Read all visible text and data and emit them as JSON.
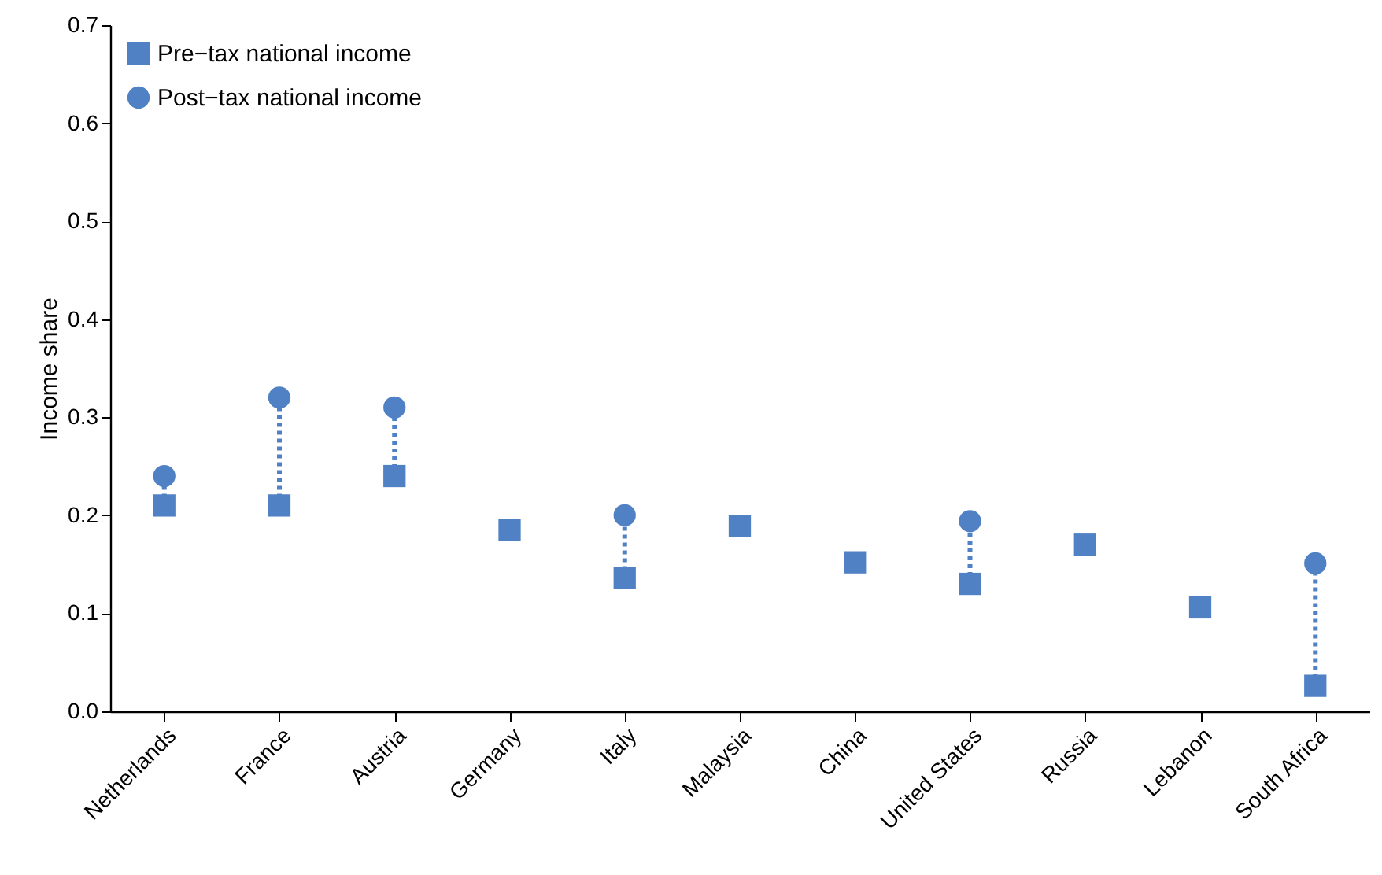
{
  "chart_data": {
    "type": "scatter",
    "ylabel": "Income share",
    "categories": [
      "Netherlands",
      "France",
      "Austria",
      "Germany",
      "Italy",
      "Malaysia",
      "China",
      "United States",
      "Russia",
      "Lebanon",
      "South Africa"
    ],
    "series": [
      {
        "name": "Pre−tax national income",
        "color": "#4f81c4",
        "marker": "square",
        "values": [
          0.21,
          0.21,
          0.24,
          0.185,
          0.136,
          0.189,
          0.152,
          0.13,
          0.17,
          0.106,
          0.026
        ]
      },
      {
        "name": "Post−tax national income",
        "color": "#4f81c4",
        "marker": "circle",
        "values": [
          0.24,
          0.32,
          0.31,
          null,
          0.2,
          null,
          null,
          0.194,
          null,
          null,
          0.151
        ]
      }
    ],
    "ylim": [
      0,
      0.7
    ],
    "yticks": [
      {
        "value": 0,
        "label": "0.0"
      },
      0.1,
      0.2,
      0.3,
      0.4,
      0.5,
      0.6,
      0.7
    ],
    "grid": false,
    "legend": "top left",
    "line_style": "dotted"
  }
}
